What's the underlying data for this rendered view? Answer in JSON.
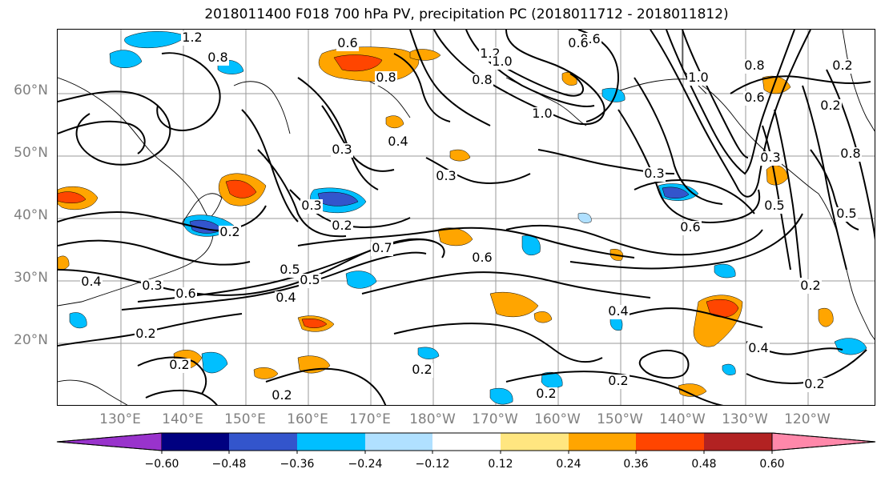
{
  "title": "2018011400 F018 700 hPa PV, precipitation PC (2018011712 - 2018011812)",
  "lat_labels": [
    "60°N",
    "50°N",
    "40°N",
    "30°N",
    "20°N"
  ],
  "lon_labels": [
    "130°E",
    "140°E",
    "150°E",
    "160°E",
    "170°E",
    "180°W",
    "170°W",
    "160°W",
    "150°W",
    "140°W",
    "130°W",
    "120°W"
  ],
  "contour_labels": [
    "1.2",
    "0.6",
    "0.8",
    "1.2",
    "0.6",
    "0.8",
    "0.8",
    "1.0",
    "1.0",
    "0.6",
    "1.0",
    "0.4",
    "0.3",
    "0.3",
    "0.3",
    "0.2",
    "0.3",
    "0.2",
    "0.6",
    "0.6",
    "0.5",
    "0.7",
    "0.5",
    "0.4",
    "0.6",
    "0.3",
    "0.4",
    "0.2",
    "0.2",
    "0.2",
    "0.2",
    "0.2",
    "0.2",
    "0.4",
    "0.4",
    "0.2",
    "0.2",
    "0.3",
    "0.5",
    "0.8",
    "0.6",
    "0.5",
    "0.2",
    "0.2",
    "0.8"
  ],
  "colorbar": {
    "ticks": [
      "−0.60",
      "−0.48",
      "−0.36",
      "−0.24",
      "−0.12",
      "0.12",
      "0.24",
      "0.36",
      "0.48",
      "0.60"
    ],
    "colors": [
      "#9933cc",
      "#000080",
      "#3355cc",
      "#00bfff",
      "#b0e0ff",
      "#ffffff",
      "#ffe680",
      "#ffa500",
      "#ff4500",
      "#b22222",
      "#ff88aa"
    ]
  }
}
